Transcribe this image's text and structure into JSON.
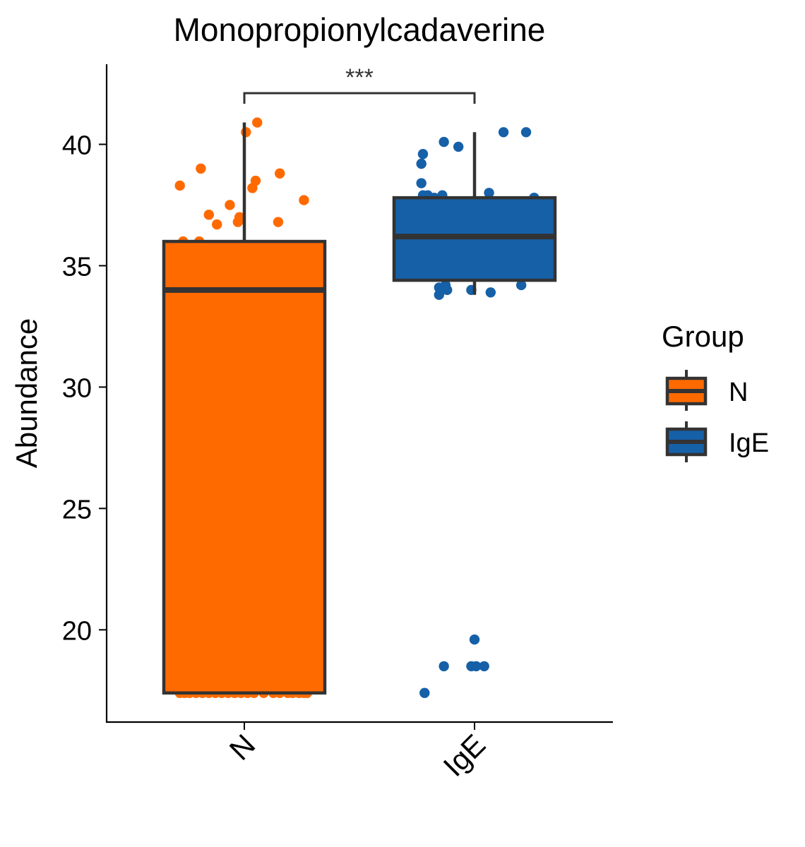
{
  "chart_data": {
    "type": "box",
    "title": "Monopropionylcadaverine",
    "xlabel": "",
    "ylabel": "Abundance",
    "categories": [
      "N",
      "IgE"
    ],
    "yticks": [
      20,
      25,
      30,
      35,
      40
    ],
    "ylim": [
      16.2,
      43.3
    ],
    "significance": {
      "label": "***",
      "between": [
        "N",
        "IgE"
      ]
    },
    "legend": {
      "title": "Group",
      "position": "right",
      "entries": [
        "N",
        "IgE"
      ]
    },
    "colors": {
      "N": "#FF6A00",
      "IgE": "#1660A8",
      "outline": "#333333"
    },
    "boxes": [
      {
        "group": "N",
        "min": 17.4,
        "q1": 17.4,
        "median": 34.0,
        "q3": 36.0,
        "max": 40.9
      },
      {
        "group": "IgE",
        "min": 33.8,
        "q1": 34.4,
        "median": 36.2,
        "q3": 37.8,
        "max": 40.5
      }
    ],
    "points": {
      "N": [
        [
          -0.4,
          38.3
        ],
        [
          -0.38,
          36.0
        ],
        [
          -0.37,
          34.9
        ],
        [
          -0.27,
          39.0
        ],
        [
          -0.22,
          37.1
        ],
        [
          -0.17,
          36.7
        ],
        [
          -0.09,
          37.5
        ],
        [
          -0.04,
          36.8
        ],
        [
          0.01,
          40.5
        ],
        [
          0.08,
          40.9
        ],
        [
          0.05,
          38.2
        ],
        [
          0.07,
          38.5
        ],
        [
          -0.28,
          36.0
        ],
        [
          -0.15,
          35.8
        ],
        [
          -0.03,
          37.0
        ],
        [
          0.22,
          38.8
        ],
        [
          0.37,
          37.7
        ],
        [
          0.38,
          35.2
        ],
        [
          0.21,
          36.8
        ],
        [
          -0.27,
          34.0
        ],
        [
          -0.15,
          34.1
        ],
        [
          -0.08,
          34.0
        ],
        [
          0.03,
          34.0
        ],
        [
          0.22,
          34.0
        ],
        [
          -0.07,
          34.0
        ],
        [
          -0.34,
          19.6
        ],
        [
          -0.35,
          18.5
        ],
        [
          -0.4,
          17.4
        ],
        [
          -0.37,
          17.4
        ],
        [
          -0.34,
          17.4
        ],
        [
          -0.3,
          17.4
        ],
        [
          -0.26,
          17.4
        ],
        [
          -0.22,
          17.4
        ],
        [
          -0.18,
          17.4
        ],
        [
          -0.14,
          17.4
        ],
        [
          -0.1,
          17.4
        ],
        [
          -0.06,
          17.4
        ],
        [
          -0.02,
          17.4
        ],
        [
          0.02,
          17.4
        ],
        [
          0.06,
          17.4
        ],
        [
          0.12,
          17.4
        ],
        [
          0.18,
          17.4
        ],
        [
          0.22,
          17.4
        ],
        [
          0.27,
          17.4
        ],
        [
          0.3,
          17.4
        ],
        [
          0.34,
          17.4
        ],
        [
          0.37,
          17.4
        ],
        [
          0.39,
          17.4
        ]
      ],
      "IgE": [
        [
          -0.32,
          39.6
        ],
        [
          -0.33,
          39.2
        ],
        [
          -0.33,
          38.4
        ],
        [
          -0.19,
          40.1
        ],
        [
          -0.1,
          39.9
        ],
        [
          0.18,
          40.5
        ],
        [
          0.32,
          40.5
        ],
        [
          0.09,
          38.0
        ],
        [
          -0.32,
          37.9
        ],
        [
          -0.29,
          37.9
        ],
        [
          -0.25,
          37.8
        ],
        [
          -0.2,
          37.9
        ],
        [
          -0.19,
          37.6
        ],
        [
          0.37,
          37.8
        ],
        [
          -0.37,
          37.3
        ],
        [
          -0.38,
          37.0
        ],
        [
          -0.35,
          36.8
        ],
        [
          -0.36,
          36.5
        ],
        [
          -0.31,
          36.8
        ],
        [
          -0.08,
          36.5
        ],
        [
          0.39,
          36.7
        ],
        [
          0.33,
          36.2
        ],
        [
          0.36,
          36.1
        ],
        [
          -0.19,
          36.1
        ],
        [
          0.36,
          35.8
        ],
        [
          0.38,
          35.6
        ],
        [
          0.39,
          35.4
        ],
        [
          0.37,
          34.7
        ],
        [
          0.37,
          34.6
        ],
        [
          0.29,
          34.2
        ],
        [
          -0.18,
          34.2
        ],
        [
          -0.22,
          34.1
        ],
        [
          -0.17,
          34.0
        ],
        [
          -0.22,
          33.8
        ],
        [
          -0.02,
          34.0
        ],
        [
          0.1,
          33.9
        ],
        [
          0.0,
          19.6
        ],
        [
          -0.19,
          18.5
        ],
        [
          -0.02,
          18.5
        ],
        [
          0.01,
          18.5
        ],
        [
          0.06,
          18.5
        ],
        [
          -0.31,
          17.4
        ]
      ]
    }
  }
}
